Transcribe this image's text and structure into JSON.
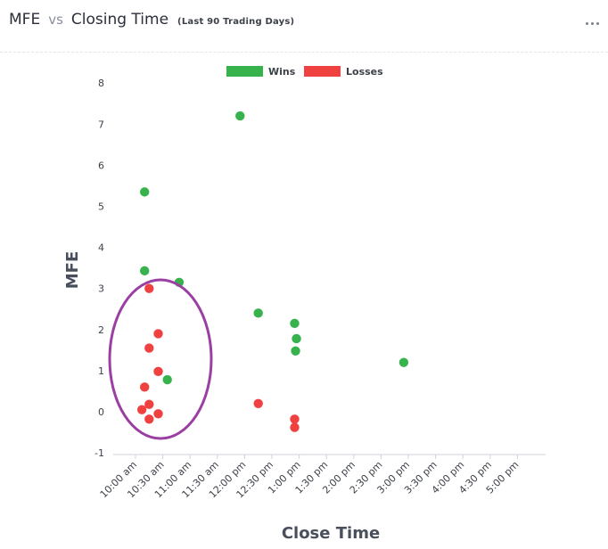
{
  "header": {
    "metric": "MFE",
    "vs": "vs",
    "versus": "Closing Time",
    "subtitle": "(Last 90 Trading Days)",
    "menu_icon": "more-horizontal-icon"
  },
  "colors": {
    "wins": "#37b24d",
    "losses": "#f04141",
    "highlight": "#9b3fa3",
    "axis": "#cfd2d8"
  },
  "annotation": {
    "shape": "ellipse",
    "color": "#9b3fa3",
    "encloses": "points near 10:00 am - 11:00 am, MFE -0.2 to 3.0"
  },
  "chart_data": {
    "type": "scatter",
    "xlabel": "Close Time",
    "ylabel": "MFE",
    "legend_position": "top-center",
    "grid": false,
    "ylim": [
      -1,
      8
    ],
    "y_ticks": [
      "-1",
      "0",
      "1",
      "2",
      "3",
      "4",
      "5",
      "6",
      "7",
      "8"
    ],
    "x_ticks": [
      "10:00 am",
      "10:30 am",
      "11:00 am",
      "11:30 am",
      "12:00 pm",
      "12:30 pm",
      "1:00 pm",
      "1:30 pm",
      "2:00 pm",
      "2:30 pm",
      "3:00 pm",
      "3:30 pm",
      "4:00 pm",
      "4:30 pm",
      "5:00 pm"
    ],
    "series": [
      {
        "name": "Wins",
        "color": "#37b24d",
        "points": [
          {
            "x": "10:10 am",
            "y": 5.35
          },
          {
            "x": "10:10 am",
            "y": 3.43
          },
          {
            "x": "10:48 am",
            "y": 3.15
          },
          {
            "x": "10:35 am",
            "y": 0.78
          },
          {
            "x": "11:55 am",
            "y": 7.2
          },
          {
            "x": "12:15 pm",
            "y": 2.4
          },
          {
            "x": "12:55 pm",
            "y": 2.15
          },
          {
            "x": "12:57 pm",
            "y": 1.78
          },
          {
            "x": "12:56 pm",
            "y": 1.48
          },
          {
            "x": "2:55 pm",
            "y": 1.2
          }
        ]
      },
      {
        "name": "Losses",
        "color": "#f04141",
        "points": [
          {
            "x": "10:15 am",
            "y": 3.0
          },
          {
            "x": "10:25 am",
            "y": 1.9
          },
          {
            "x": "10:15 am",
            "y": 1.55
          },
          {
            "x": "10:25 am",
            "y": 0.98
          },
          {
            "x": "10:10 am",
            "y": 0.6
          },
          {
            "x": "10:15 am",
            "y": 0.18
          },
          {
            "x": "10:07 am",
            "y": 0.05
          },
          {
            "x": "10:25 am",
            "y": -0.05
          },
          {
            "x": "10:15 am",
            "y": -0.18
          },
          {
            "x": "12:15 pm",
            "y": 0.2
          },
          {
            "x": "12:55 pm",
            "y": -0.18
          },
          {
            "x": "12:55 pm",
            "y": -0.38
          }
        ]
      }
    ]
  }
}
